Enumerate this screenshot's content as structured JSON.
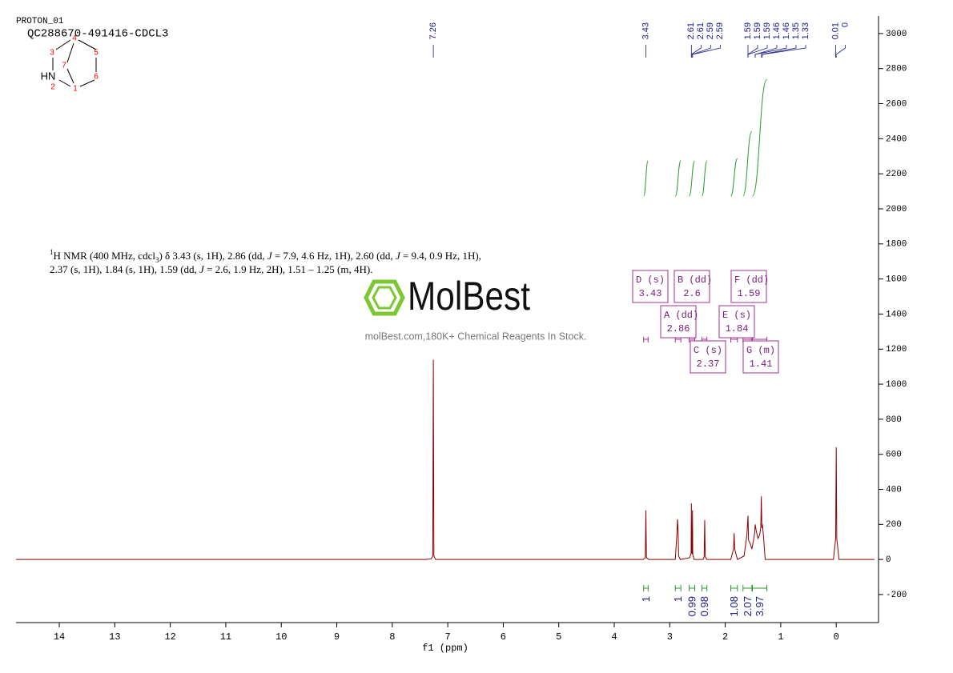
{
  "chart_data": {
    "type": "line",
    "header": [
      "PROTON_01",
      "QC288670-491416-CDCL3"
    ],
    "structure": {
      "atoms": [
        "4",
        "3",
        "7",
        "5",
        "HN",
        "2",
        "1",
        "6"
      ]
    },
    "description": [
      [
        {
          "text": "1",
          "style": "sup"
        },
        {
          "text": "H NMR (400 MHz, cdcl"
        },
        {
          "text": "3",
          "style": "sub"
        },
        {
          "text": ") δ 3.43 (s, 1H), 2.86 (dd, "
        },
        {
          "text": "J",
          "style": "i"
        },
        {
          "text": " = 7.9, 4.6 Hz, 1H), 2.60 (dd, "
        },
        {
          "text": "J",
          "style": "i"
        },
        {
          "text": " = 9.4, 0.9 Hz, 1H),"
        }
      ],
      [
        {
          "text": "2.37 (s, 1H), 1.84 (s, 1H), 1.59 (dd, "
        },
        {
          "text": "J",
          "style": "i"
        },
        {
          "text": " = 2.6, 1.9 Hz, 2H), 1.51 – 1.25 (m, 4H)."
        }
      ]
    ],
    "watermark": {
      "logo": "MolBest",
      "tagline": "molBest.com,180K+ Chemical Reagents In Stock."
    },
    "x_label": "f1 (ppm)",
    "xlim": [
      14.78,
      -0.69
    ],
    "xticks": [
      14,
      13,
      12,
      11,
      10,
      9,
      8,
      7,
      6,
      5,
      4,
      3,
      2,
      1,
      0
    ],
    "ylim": [
      -360,
      3100
    ],
    "yticks": [
      -200,
      0,
      200,
      400,
      600,
      800,
      1000,
      1200,
      1400,
      1600,
      1800,
      2000,
      2200,
      2400,
      2600,
      2800,
      3000
    ],
    "series": [
      {
        "color": "#8b0000",
        "x": [
          14.78,
          7.4,
          7.3,
          7.27,
          7.26,
          7.25,
          7.22,
          3.48,
          3.44,
          3.43,
          3.42,
          3.38,
          2.9,
          2.87,
          2.86,
          2.85,
          2.84,
          2.81,
          2.64,
          2.615,
          2.61,
          2.605,
          2.595,
          2.59,
          2.585,
          2.56,
          2.4,
          2.38,
          2.37,
          2.36,
          2.33,
          1.9,
          1.85,
          1.84,
          1.83,
          1.78,
          1.66,
          1.61,
          1.59,
          1.58,
          1.55,
          1.52,
          1.49,
          1.47,
          1.46,
          1.44,
          1.41,
          1.38,
          1.36,
          1.35,
          1.34,
          1.33,
          1.31,
          1.28,
          0.05,
          0.01,
          0.0,
          -0.01,
          -0.05,
          -0.69
        ],
        "values": [
          0,
          0,
          3,
          20,
          1140,
          20,
          0,
          0,
          10,
          280,
          10,
          0,
          0,
          150,
          230,
          170,
          20,
          0,
          10,
          40,
          320,
          40,
          30,
          280,
          30,
          0,
          0,
          15,
          225,
          15,
          0,
          0,
          60,
          150,
          60,
          0,
          20,
          140,
          250,
          110,
          90,
          60,
          110,
          150,
          200,
          160,
          120,
          140,
          180,
          360,
          180,
          200,
          130,
          0,
          0,
          120,
          640,
          120,
          0,
          0
        ]
      }
    ],
    "peak_labels": [
      7.26,
      3.43,
      2.61,
      2.61,
      2.59,
      2.59,
      1.59,
      1.59,
      1.59,
      1.46,
      1.46,
      1.35,
      1.33,
      0.01,
      0.0
    ],
    "integrals": [
      {
        "from": 3.47,
        "to": 3.39,
        "value": 1.0
      },
      {
        "from": 2.9,
        "to": 2.8,
        "value": 1.0
      },
      {
        "from": 2.65,
        "to": 2.55,
        "value": 0.99
      },
      {
        "from": 2.42,
        "to": 2.33,
        "value": 0.98
      },
      {
        "from": 1.9,
        "to": 1.78,
        "value": 1.08
      },
      {
        "from": 1.68,
        "to": 1.52,
        "value": 2.07
      },
      {
        "from": 1.51,
        "to": 1.25,
        "value": 3.97
      }
    ],
    "multiplets": [
      {
        "name": "D (s)",
        "shift": 3.43
      },
      {
        "name": "B (dd)",
        "shift": 2.6
      },
      {
        "name": "F (dd)",
        "shift": 1.59
      },
      {
        "name": "A (dd)",
        "shift": 2.86
      },
      {
        "name": "E (s)",
        "shift": 1.84
      },
      {
        "name": "C (s)",
        "shift": 2.37
      },
      {
        "name": "G (m)",
        "shift": 1.41
      }
    ],
    "integral_color": "#2a9a2a",
    "label_color": "#1a1a8c",
    "box_color": "#a03090"
  }
}
